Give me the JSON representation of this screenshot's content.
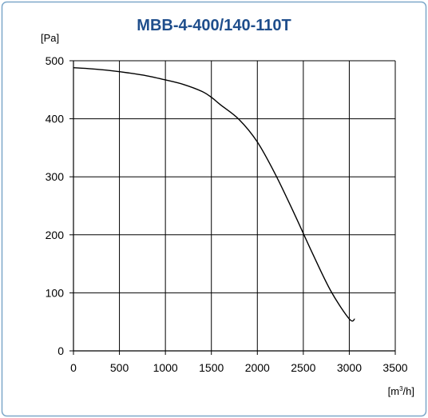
{
  "chart_data": {
    "type": "line",
    "title": "MBB-4-400/140-110T",
    "ylabel": "[Pa]",
    "xlabel_main": "[m",
    "xlabel_sup": "3",
    "xlabel_tail": "/h]",
    "xlim": [
      0,
      3500
    ],
    "ylim": [
      0,
      500
    ],
    "xticks": [
      0,
      500,
      1000,
      1500,
      2000,
      2500,
      3000,
      3500
    ],
    "yticks": [
      0,
      100,
      200,
      300,
      400,
      500
    ],
    "xtick_labels": [
      "0",
      "500",
      "1000",
      "1500",
      "2000",
      "2500",
      "3000",
      "3500"
    ],
    "ytick_labels": [
      "0",
      "100",
      "200",
      "300",
      "400",
      "500"
    ],
    "grid": true,
    "series": [
      {
        "color": "#000000",
        "points": [
          [
            0,
            488
          ],
          [
            200,
            486
          ],
          [
            400,
            483
          ],
          [
            600,
            479
          ],
          [
            800,
            474
          ],
          [
            1000,
            467
          ],
          [
            1200,
            459
          ],
          [
            1400,
            447
          ],
          [
            1500,
            437
          ],
          [
            1600,
            424
          ],
          [
            1800,
            399
          ],
          [
            2000,
            360
          ],
          [
            2200,
            303
          ],
          [
            2400,
            237
          ],
          [
            2600,
            168
          ],
          [
            2800,
            103
          ],
          [
            3000,
            55
          ],
          [
            3060,
            55
          ]
        ]
      }
    ],
    "colors": {
      "title": "#1f4e8c",
      "frame": "#7da7c9",
      "axis": "#000000",
      "grid": "#000000",
      "line": "#000000"
    }
  }
}
